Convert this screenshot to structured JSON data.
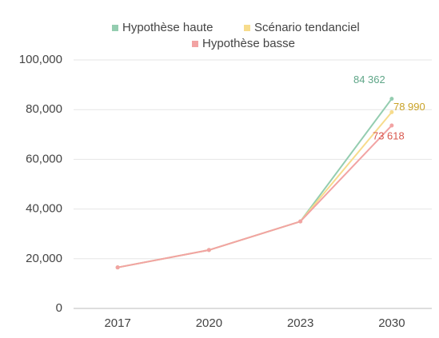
{
  "chart_data": {
    "type": "line",
    "categories": [
      "2017",
      "2020",
      "2023",
      "2030"
    ],
    "series": [
      {
        "name": "Hypothèse haute",
        "color": "#94cdb0",
        "label_color": "#5fa688",
        "values": [
          16500,
          23500,
          35000,
          84362
        ],
        "value_labels": [
          null,
          null,
          null,
          "84 362"
        ]
      },
      {
        "name": "Scénario tendanciel",
        "color": "#f7dc8c",
        "label_color": "#c9a227",
        "values": [
          16500,
          23500,
          35000,
          78990
        ],
        "value_labels": [
          null,
          null,
          null,
          "78 990"
        ]
      },
      {
        "name": "Hypothèse basse",
        "color": "#f2a3a3",
        "label_color": "#d9594f",
        "values": [
          16500,
          23500,
          35000,
          73618
        ],
        "value_labels": [
          null,
          null,
          null,
          "73 618"
        ]
      }
    ],
    "ylim": [
      0,
      100000
    ],
    "yticks": [
      0,
      {
        "value": 20000,
        "label": "20,000"
      },
      {
        "value": 40000,
        "label": "40,000"
      },
      {
        "value": 60000,
        "label": "60,000"
      },
      {
        "value": 80000,
        "label": "80,000"
      },
      {
        "value": 100000,
        "label": "100,000"
      }
    ],
    "grid": true
  }
}
